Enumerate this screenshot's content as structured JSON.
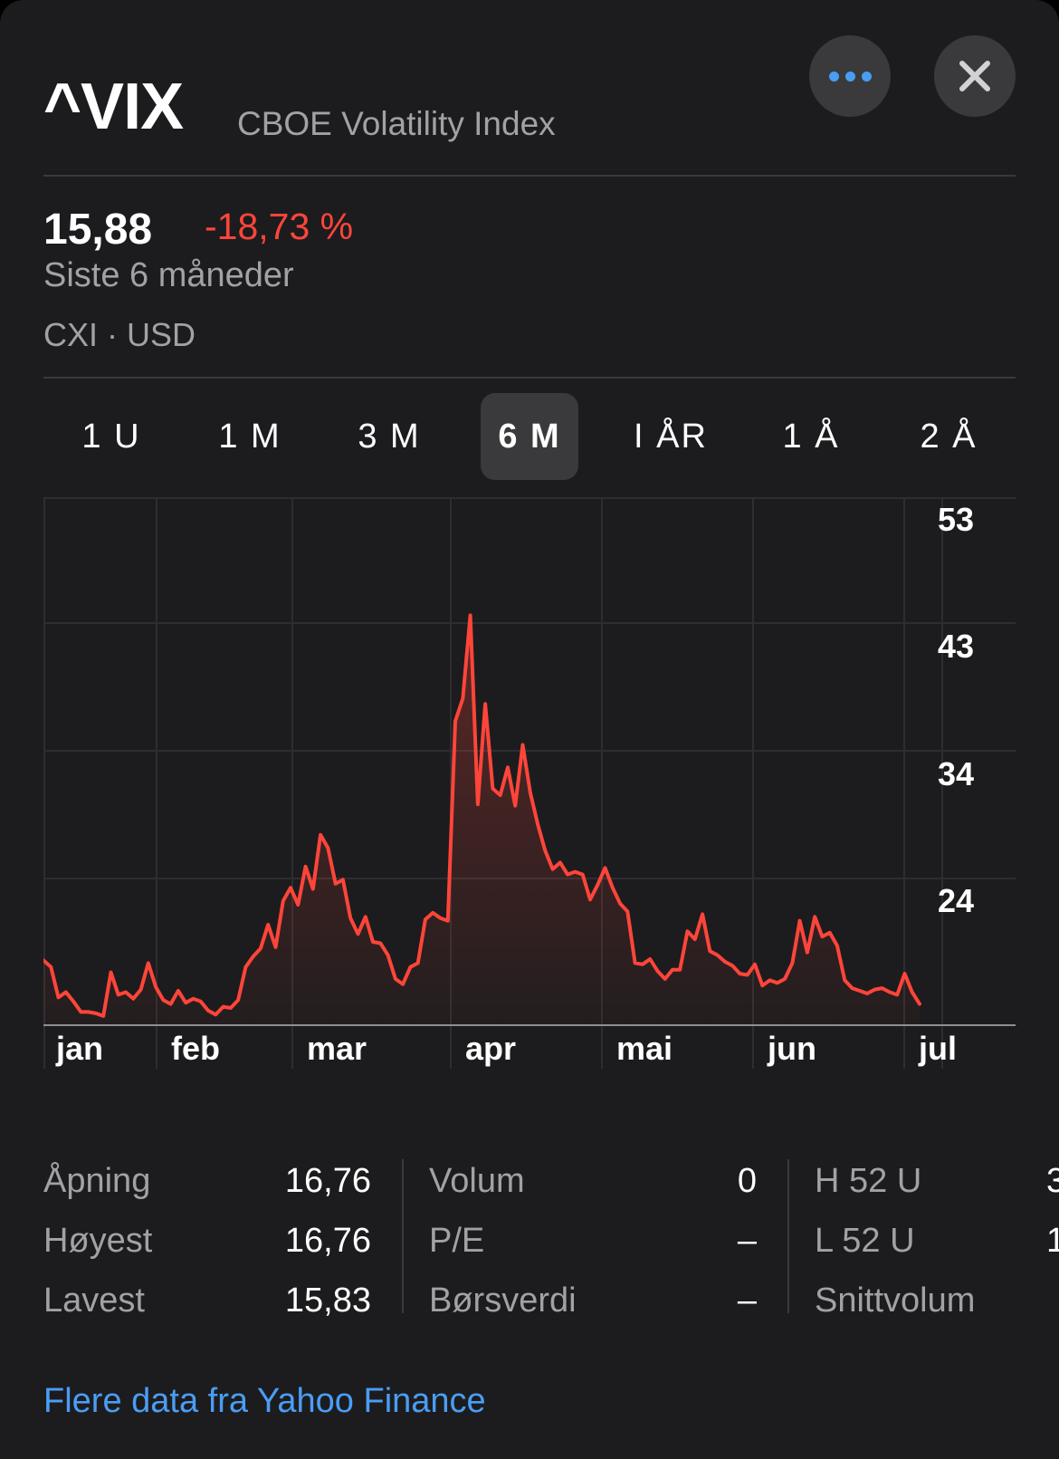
{
  "header": {
    "symbol": "^VIX",
    "full_name": "CBOE Volatility Index",
    "more_icon": "ellipsis-icon",
    "close_icon": "close-icon"
  },
  "quote": {
    "price": "15,88",
    "change": "-18,73 %",
    "period": "Siste 6 måneder",
    "exchange": "CXI · USD"
  },
  "range_tabs": {
    "items": [
      "1 U",
      "1 M",
      "3 M",
      "6 M",
      "I ÅR",
      "1 Å",
      "2 Å"
    ],
    "selected": "6 M"
  },
  "chart_data": {
    "type": "area",
    "x_tick_labels": [
      "jan",
      "feb",
      "mar",
      "apr",
      "mai",
      "jun",
      "jul"
    ],
    "y_tick_labels": [
      "53",
      "43",
      "34",
      "24"
    ],
    "y_ticks": [
      53,
      43,
      34,
      24
    ],
    "ylim": [
      14.3,
      54.3
    ],
    "grid": true,
    "line_color": "#ff453a",
    "series": [
      {
        "values": [
          19.2,
          18.7,
          16.4,
          16.8,
          16.1,
          15.3,
          15.3,
          15.2,
          15.0,
          18.3,
          16.6,
          16.8,
          16.3,
          17.0,
          19.0,
          17.2,
          16.2,
          15.9,
          16.9,
          16.0,
          16.3,
          16.1,
          15.4,
          15.1,
          15.7,
          15.6,
          16.2,
          18.7,
          19.5,
          20.1,
          21.9,
          20.2,
          23.7,
          24.7,
          23.4,
          26.3,
          24.6,
          28.7,
          27.7,
          25.0,
          25.3,
          22.4,
          21.2,
          22.5,
          20.6,
          20.5,
          19.6,
          17.8,
          17.4,
          18.7,
          19.0,
          22.3,
          22.8,
          22.4,
          22.2,
          37.3,
          39.0,
          45.3,
          31.0,
          38.6,
          32.2,
          31.7,
          33.8,
          30.9,
          35.5,
          31.9,
          29.5,
          27.5,
          26.1,
          26.6,
          25.7,
          25.9,
          25.7,
          23.8,
          24.9,
          26.2,
          24.7,
          23.5,
          22.9,
          19.0,
          18.9,
          19.3,
          18.4,
          17.8,
          18.5,
          18.5,
          21.4,
          20.8,
          22.7,
          19.9,
          19.6,
          19.1,
          18.8,
          18.2,
          18.1,
          18.9,
          17.3,
          17.7,
          17.5,
          17.8,
          19.0,
          22.2,
          19.8,
          22.5,
          21.0,
          21.3,
          20.3,
          17.7,
          17.1,
          16.9,
          16.7,
          17.0,
          17.1,
          16.8,
          16.6,
          18.2,
          16.8,
          15.9
        ]
      }
    ]
  },
  "stats": {
    "col1": [
      {
        "label": "Åpning",
        "value": "16,76"
      },
      {
        "label": "Høyest",
        "value": "16,76"
      },
      {
        "label": "Lavest",
        "value": "15,83"
      }
    ],
    "col2": [
      {
        "label": "Volum",
        "value": "0"
      },
      {
        "label": "P/E",
        "value": "–"
      },
      {
        "label": "Børsverdi",
        "value": "–"
      }
    ],
    "col3": [
      {
        "label": "H 52 U",
        "value": "3"
      },
      {
        "label": "L 52 U",
        "value": "1"
      },
      {
        "label": "Snittvolum",
        "value": ""
      }
    ]
  },
  "footer": {
    "yahoo_link": "Flere data fra Yahoo Finance"
  },
  "colors": {
    "background": "#1c1c1e",
    "negative": "#ff453a",
    "link": "#4a9df5",
    "secondary_text": "#a1a1a6"
  }
}
